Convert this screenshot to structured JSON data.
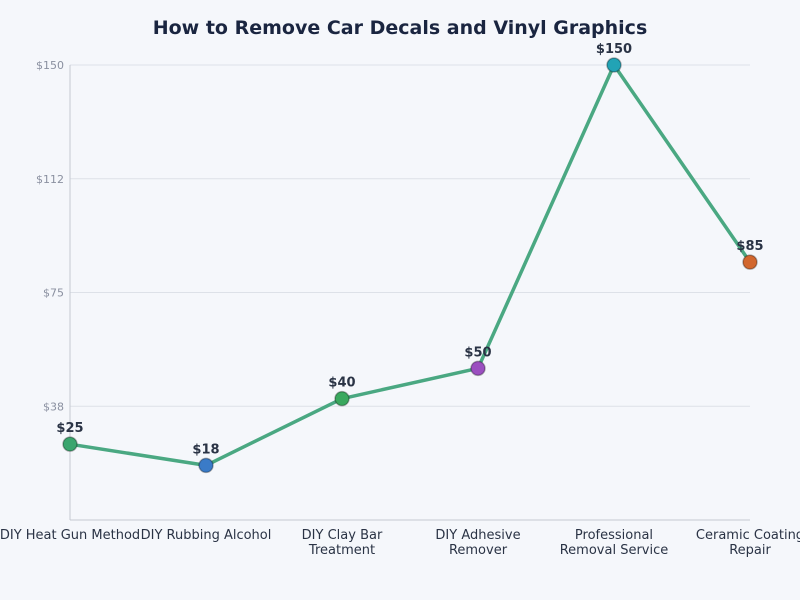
{
  "chart_data": {
    "type": "line",
    "title": "How to Remove Car Decals and Vinyl Graphics",
    "xlabel": "",
    "ylabel": "",
    "ylim": [
      0,
      150
    ],
    "grid": true,
    "yticks": [
      {
        "value": 37.5,
        "label": "$38"
      },
      {
        "value": 75,
        "label": "$75"
      },
      {
        "value": 112.5,
        "label": "$112"
      },
      {
        "value": 150,
        "label": "$150"
      }
    ],
    "categories": [
      [
        "DIY Heat Gun Method"
      ],
      [
        "DIY Rubbing Alcohol"
      ],
      [
        "DIY Clay Bar",
        "Treatment"
      ],
      [
        "DIY Adhesive",
        "Remover"
      ],
      [
        "Professional",
        "Removal Service"
      ],
      [
        "Ceramic Coating",
        "Repair"
      ]
    ],
    "values": [
      25,
      18,
      40,
      50,
      150,
      85
    ],
    "data_labels": [
      "$25",
      "$18",
      "$40",
      "$50",
      "$150",
      "$85"
    ],
    "line_color": "#4aa882",
    "point_colors": [
      "#3aa56e",
      "#3a7bc8",
      "#3aa85e",
      "#9b4fc0",
      "#22a3b5",
      "#d2672e"
    ]
  }
}
